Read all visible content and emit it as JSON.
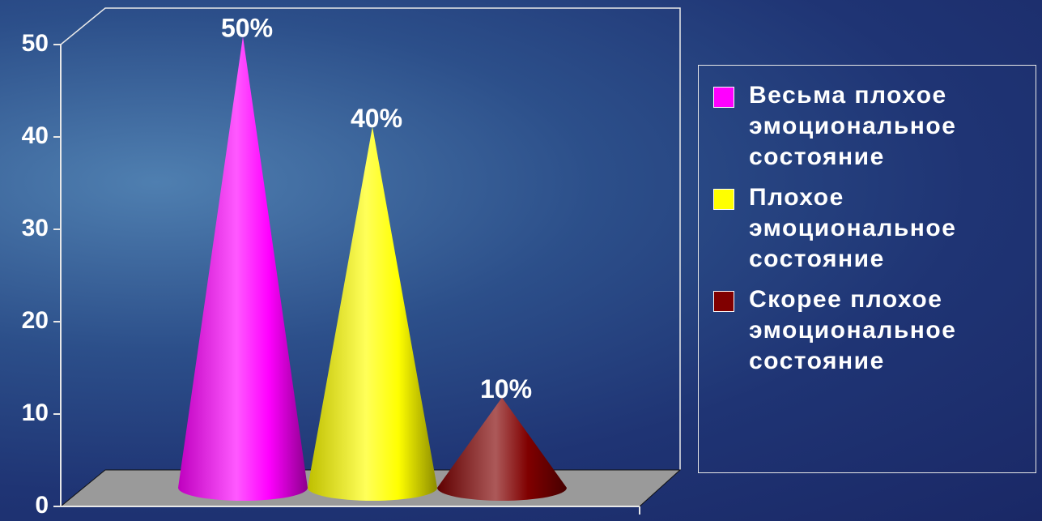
{
  "chart_data": {
    "type": "cone",
    "series": [
      {
        "name": "Весьма плохое эмоциональное состояние",
        "color": "#ff00ff",
        "values": [
          50
        ],
        "value_labels": [
          "50%"
        ]
      },
      {
        "name": "Плохое эмоциональное состояние",
        "color": "#ffff00",
        "values": [
          40
        ],
        "value_labels": [
          "40%"
        ]
      },
      {
        "name": "Скорее плохое эмоциональное состояние",
        "color": "#800000",
        "values": [
          10
        ],
        "value_labels": [
          "10%"
        ]
      }
    ],
    "ylim": [
      0,
      50
    ],
    "yticks": [
      0,
      10,
      20,
      30,
      40,
      50
    ],
    "legend": "right"
  }
}
